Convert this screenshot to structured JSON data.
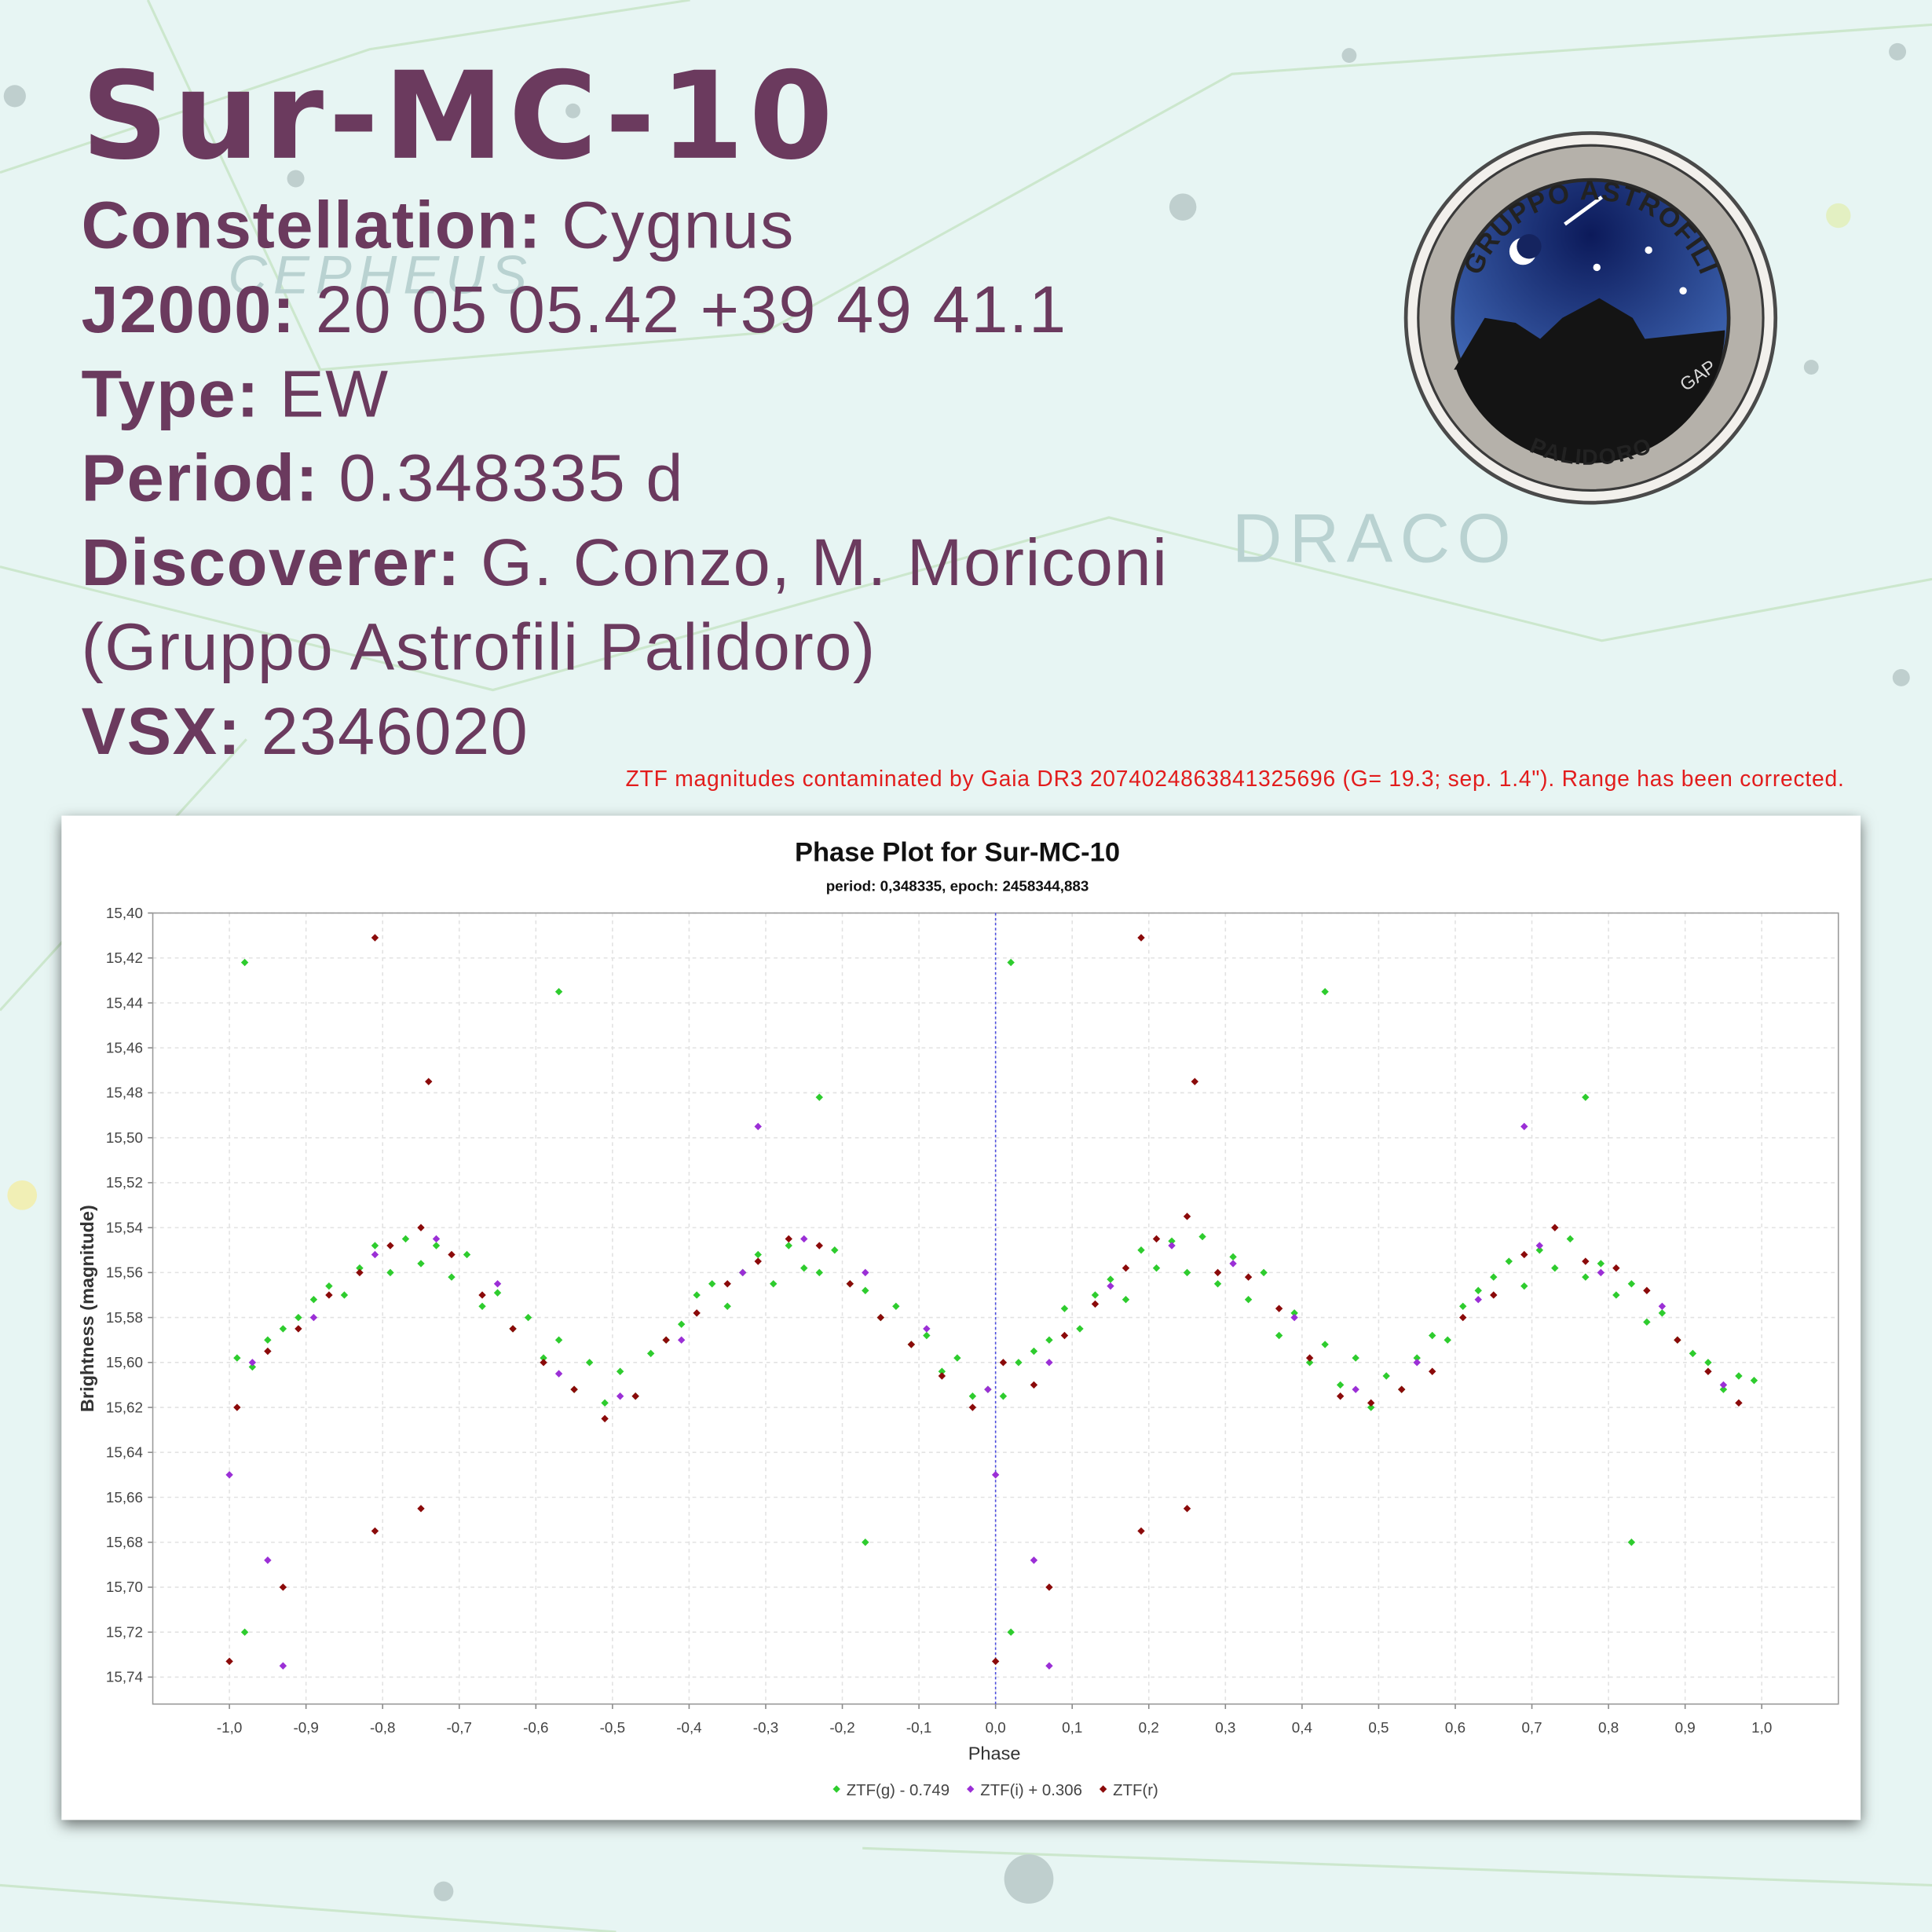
{
  "header": {
    "title": "Sur-MC-10",
    "fields": [
      {
        "label": "Constellation:",
        "value": "Cygnus"
      },
      {
        "label": "J2000:",
        "value": "20 05 05.42 +39 49 41.1"
      },
      {
        "label": "Type:",
        "value": "EW"
      },
      {
        "label": "Period:",
        "value": "0.348335 d"
      },
      {
        "label": "Discoverer:",
        "value": "G. Conzo, M. Moriconi"
      },
      {
        "value": "(Gruppo Astrofili Palidoro)"
      },
      {
        "label": "VSX:",
        "value": "2346020"
      }
    ]
  },
  "note": "ZTF magnitudes contaminated by Gaia DR3 2074024863841325696 (G= 19.3; sep. 1.4\"). Range has been corrected.",
  "logo": {
    "top": "GRUPPO ASTROFILI",
    "bottom": "PALIDORO",
    "initials": "GAP"
  },
  "background_labels": [
    "CEPHEUS",
    "DRACO"
  ],
  "chart_data": {
    "type": "scatter",
    "title": "Phase Plot for Sur-MC-10",
    "subtitle": "period: 0,348335, epoch: 2458344,883",
    "x_label": "Phase",
    "y_label": "Brightness (magnitude)",
    "xlim": [
      -1.1,
      1.1
    ],
    "ylim": [
      15.4,
      15.752
    ],
    "y_inverted": true,
    "grid": true,
    "legend": "bottom",
    "reference_line_x": 0,
    "xticks": [
      {
        "value": -1.0,
        "label": "-1,0"
      },
      {
        "value": -0.9,
        "label": "-0,9"
      },
      {
        "value": -0.8,
        "label": "-0,8"
      },
      {
        "value": -0.7,
        "label": "-0,7"
      },
      {
        "value": -0.6,
        "label": "-0,6"
      },
      {
        "value": -0.5,
        "label": "-0,5"
      },
      {
        "value": -0.4,
        "label": "-0,4"
      },
      {
        "value": -0.3,
        "label": "-0,3"
      },
      {
        "value": -0.2,
        "label": "-0,2"
      },
      {
        "value": -0.1,
        "label": "-0,1"
      },
      {
        "value": 0,
        "label": "0,0"
      },
      {
        "value": 0.1,
        "label": "0,1"
      },
      {
        "value": 0.2,
        "label": "0,2"
      },
      {
        "value": 0.3,
        "label": "0,3"
      },
      {
        "value": 0.4,
        "label": "0,4"
      },
      {
        "value": 0.5,
        "label": "0,5"
      },
      {
        "value": 0.6,
        "label": "0,6"
      },
      {
        "value": 0.7,
        "label": "0,7"
      },
      {
        "value": 0.8,
        "label": "0,8"
      },
      {
        "value": 0.9,
        "label": "0,9"
      },
      {
        "value": 1.0,
        "label": "1,0"
      }
    ],
    "yticks": [
      {
        "value": 15.4,
        "label": "15,40"
      },
      {
        "value": 15.42,
        "label": "15,42"
      },
      {
        "value": 15.44,
        "label": "15,44"
      },
      {
        "value": 15.46,
        "label": "15,46"
      },
      {
        "value": 15.48,
        "label": "15,48"
      },
      {
        "value": 15.5,
        "label": "15,50"
      },
      {
        "value": 15.52,
        "label": "15,52"
      },
      {
        "value": 15.54,
        "label": "15,54"
      },
      {
        "value": 15.56,
        "label": "15,56"
      },
      {
        "value": 15.58,
        "label": "15,58"
      },
      {
        "value": 15.6,
        "label": "15,60"
      },
      {
        "value": 15.62,
        "label": "15,62"
      },
      {
        "value": 15.64,
        "label": "15,64"
      },
      {
        "value": 15.66,
        "label": "15,66"
      },
      {
        "value": 15.68,
        "label": "15,68"
      },
      {
        "value": 15.7,
        "label": "15,70"
      },
      {
        "value": 15.72,
        "label": "15,72"
      },
      {
        "value": 15.74,
        "label": "15,74"
      }
    ],
    "series": [
      {
        "name": "ZTF(g) - 0.749",
        "color": "#2ecc2e",
        "x": [
          -0.99,
          -0.97,
          -0.95,
          -0.93,
          -0.91,
          -0.89,
          -0.87,
          -0.85,
          -0.83,
          -0.81,
          -0.79,
          -0.77,
          -0.75,
          -0.73,
          -0.71,
          -0.69,
          -0.67,
          -0.65,
          -0.63,
          -0.61,
          -0.59,
          -0.57,
          -0.55,
          -0.53,
          -0.51,
          -0.49,
          -0.47,
          -0.45,
          -0.43,
          -0.41,
          -0.39,
          -0.37,
          -0.35,
          -0.33,
          -0.31,
          -0.29,
          -0.27,
          -0.25,
          -0.23,
          -0.21,
          -0.19,
          -0.17,
          -0.15,
          -0.13,
          -0.11,
          -0.09,
          -0.07,
          -0.05,
          -0.03,
          -0.01,
          0.01,
          0.03,
          0.05,
          0.07,
          0.09,
          0.11,
          0.13,
          0.15,
          0.17,
          0.19,
          0.21,
          0.23,
          0.25,
          0.27,
          0.29,
          0.31,
          0.33,
          0.35,
          0.37,
          0.39,
          0.41,
          0.43,
          0.45,
          0.47,
          0.49,
          0.51,
          0.53,
          0.55,
          0.57,
          0.59,
          0.61,
          0.63,
          0.65,
          0.67,
          0.69,
          0.71,
          0.73,
          0.75,
          0.77,
          0.79,
          0.81,
          0.83,
          0.85,
          0.87,
          0.89,
          0.91,
          0.93,
          0.95,
          0.97,
          0.99,
          -0.98,
          -0.57,
          0.02,
          0.43,
          -0.17,
          0.83,
          -0.98,
          0.02,
          -0.23,
          0.77
        ],
        "values": [
          15.598,
          15.602,
          15.59,
          15.585,
          15.58,
          15.572,
          15.566,
          15.57,
          15.558,
          15.548,
          15.56,
          15.545,
          15.556,
          15.548,
          15.562,
          15.552,
          15.575,
          15.569,
          15.585,
          15.58,
          15.598,
          15.59,
          15.612,
          15.6,
          15.618,
          15.604,
          15.615,
          15.596,
          15.59,
          15.583,
          15.57,
          15.565,
          15.575,
          15.56,
          15.552,
          15.565,
          15.548,
          15.558,
          15.56,
          15.55,
          15.565,
          15.568,
          15.58,
          15.575,
          15.592,
          15.588,
          15.604,
          15.598,
          15.615,
          15.612,
          15.615,
          15.6,
          15.595,
          15.59,
          15.576,
          15.585,
          15.57,
          15.563,
          15.572,
          15.55,
          15.558,
          15.546,
          15.56,
          15.544,
          15.565,
          15.553,
          15.572,
          15.56,
          15.588,
          15.578,
          15.6,
          15.592,
          15.61,
          15.598,
          15.62,
          15.606,
          15.612,
          15.598,
          15.588,
          15.59,
          15.575,
          15.568,
          15.562,
          15.555,
          15.566,
          15.55,
          15.558,
          15.545,
          15.562,
          15.556,
          15.57,
          15.565,
          15.582,
          15.578,
          15.59,
          15.596,
          15.6,
          15.612,
          15.606,
          15.608,
          15.422,
          15.435,
          15.422,
          15.435,
          15.68,
          15.68,
          15.72,
          15.72,
          15.482,
          15.482
        ]
      },
      {
        "name": "ZTF(i) + 0.306",
        "color": "#9b2fd6",
        "x": [
          -0.97,
          -0.89,
          -0.81,
          -0.73,
          -0.65,
          -0.57,
          -0.49,
          -0.41,
          -0.33,
          -0.25,
          -0.17,
          -0.09,
          -0.01,
          0.07,
          0.15,
          0.23,
          0.31,
          0.39,
          0.47,
          0.55,
          0.63,
          0.71,
          0.79,
          0.87,
          0.95,
          -1.0,
          0.0,
          -0.93,
          0.07,
          -0.95,
          0.05,
          -0.31,
          0.69
        ],
        "values": [
          15.6,
          15.58,
          15.552,
          15.545,
          15.565,
          15.605,
          15.615,
          15.59,
          15.56,
          15.545,
          15.56,
          15.585,
          15.612,
          15.6,
          15.566,
          15.548,
          15.556,
          15.58,
          15.612,
          15.6,
          15.572,
          15.548,
          15.56,
          15.575,
          15.61,
          15.65,
          15.65,
          15.735,
          15.735,
          15.688,
          15.688,
          15.495,
          15.495
        ]
      },
      {
        "name": "ZTF(r)",
        "color": "#8b0a0a",
        "x": [
          -0.99,
          -0.95,
          -0.91,
          -0.87,
          -0.83,
          -0.79,
          -0.75,
          -0.71,
          -0.67,
          -0.63,
          -0.59,
          -0.55,
          -0.51,
          -0.47,
          -0.43,
          -0.39,
          -0.35,
          -0.31,
          -0.27,
          -0.23,
          -0.19,
          -0.15,
          -0.11,
          -0.07,
          -0.03,
          0.01,
          0.05,
          0.09,
          0.13,
          0.17,
          0.21,
          0.25,
          0.29,
          0.33,
          0.37,
          0.41,
          0.45,
          0.49,
          0.53,
          0.57,
          0.61,
          0.65,
          0.69,
          0.73,
          0.77,
          0.81,
          0.85,
          0.89,
          0.93,
          0.97,
          -0.81,
          0.19,
          -1.0,
          0.0,
          -0.93,
          0.07,
          -0.81,
          0.19,
          -0.75,
          0.25,
          -0.74,
          0.26
        ],
        "values": [
          15.62,
          15.595,
          15.585,
          15.57,
          15.56,
          15.548,
          15.54,
          15.552,
          15.57,
          15.585,
          15.6,
          15.612,
          15.625,
          15.615,
          15.59,
          15.578,
          15.565,
          15.555,
          15.545,
          15.548,
          15.565,
          15.58,
          15.592,
          15.606,
          15.62,
          15.6,
          15.61,
          15.588,
          15.574,
          15.558,
          15.545,
          15.535,
          15.56,
          15.562,
          15.576,
          15.598,
          15.615,
          15.618,
          15.612,
          15.604,
          15.58,
          15.57,
          15.552,
          15.54,
          15.555,
          15.558,
          15.568,
          15.59,
          15.604,
          15.618,
          15.411,
          15.411,
          15.733,
          15.733,
          15.7,
          15.7,
          15.675,
          15.675,
          15.665,
          15.665,
          15.475,
          15.475
        ]
      }
    ]
  }
}
